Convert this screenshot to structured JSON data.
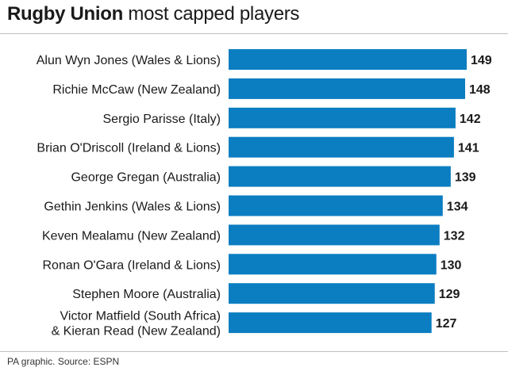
{
  "header": {
    "title_bold": "Rugby Union",
    "title_rest": " most capped players"
  },
  "footer": {
    "source": "PA graphic. Source: ESPN"
  },
  "colors": {
    "bar": "#0b7dc1",
    "text": "#1a1a1a"
  },
  "chart_data": {
    "type": "bar",
    "orientation": "horizontal",
    "title": "Rugby Union most capped players",
    "categories": [
      "Alun Wyn Jones (Wales & Lions)",
      "Richie McCaw (New Zealand)",
      "Sergio Parisse (Italy)",
      "Brian O'Driscoll (Ireland & Lions)",
      "George Gregan (Australia)",
      "Gethin Jenkins (Wales & Lions)",
      "Keven Mealamu (New Zealand)",
      "Ronan O'Gara (Ireland & Lions)",
      "Stephen Moore (Australia)",
      "Victor Matfield (South Africa) & Kieran Read (New Zealand)"
    ],
    "category_lines": [
      [
        "Alun Wyn Jones (Wales & Lions)"
      ],
      [
        "Richie McCaw (New Zealand)"
      ],
      [
        "Sergio Parisse (Italy)"
      ],
      [
        "Brian O'Driscoll (Ireland & Lions)"
      ],
      [
        "George Gregan (Australia)"
      ],
      [
        "Gethin Jenkins (Wales & Lions)"
      ],
      [
        "Keven Mealamu (New Zealand)"
      ],
      [
        "Ronan O'Gara (Ireland & Lions)"
      ],
      [
        "Stephen Moore (Australia)"
      ],
      [
        "Victor Matfield (South Africa)",
        "& Kieran Read (New Zealand)"
      ]
    ],
    "values": [
      149,
      148,
      142,
      141,
      139,
      134,
      132,
      130,
      129,
      127
    ],
    "value_labels": [
      "149",
      "148",
      "142",
      "141",
      "139",
      "134",
      "132",
      "130",
      "129",
      "127"
    ],
    "xlim": [
      0,
      149
    ],
    "grid": false,
    "legend": "none",
    "data_labels": "end"
  }
}
